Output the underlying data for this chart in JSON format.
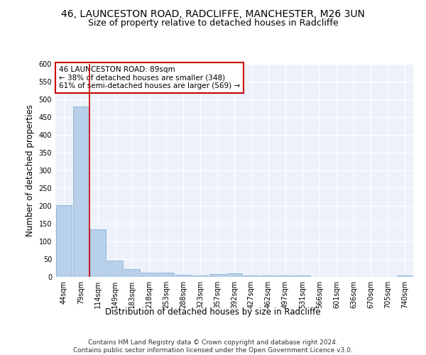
{
  "title_line1": "46, LAUNCESTON ROAD, RADCLIFFE, MANCHESTER, M26 3UN",
  "title_line2": "Size of property relative to detached houses in Radcliffe",
  "xlabel": "Distribution of detached houses by size in Radcliffe",
  "ylabel": "Number of detached properties",
  "categories": [
    "44sqm",
    "79sqm",
    "114sqm",
    "149sqm",
    "183sqm",
    "218sqm",
    "253sqm",
    "288sqm",
    "323sqm",
    "357sqm",
    "392sqm",
    "427sqm",
    "462sqm",
    "497sqm",
    "531sqm",
    "566sqm",
    "601sqm",
    "636sqm",
    "670sqm",
    "705sqm",
    "740sqm"
  ],
  "values": [
    202,
    480,
    135,
    46,
    22,
    13,
    12,
    6,
    4,
    9,
    10,
    5,
    4,
    4,
    4,
    1,
    1,
    1,
    1,
    1,
    5
  ],
  "bar_color": "#b8d0ea",
  "bar_edge_color": "#7aaad0",
  "annotation_text": "46 LAUNCESTON ROAD: 89sqm\n← 38% of detached houses are smaller (348)\n61% of semi-detached houses are larger (569) →",
  "annotation_box_color": "#ffffff",
  "annotation_box_edge_color": "#cc0000",
  "vline_color": "#cc0000",
  "vline_x_index": 1.5,
  "ylim": [
    0,
    600
  ],
  "yticks": [
    0,
    50,
    100,
    150,
    200,
    250,
    300,
    350,
    400,
    450,
    500,
    550,
    600
  ],
  "footnote": "Contains HM Land Registry data © Crown copyright and database right 2024.\nContains public sector information licensed under the Open Government Licence v3.0.",
  "bg_color": "#edf2fa",
  "grid_color": "#ffffff",
  "title_fontsize": 10,
  "subtitle_fontsize": 9,
  "axis_label_fontsize": 8.5,
  "tick_fontsize": 7,
  "footnote_fontsize": 6.5,
  "annot_fontsize": 7.5
}
